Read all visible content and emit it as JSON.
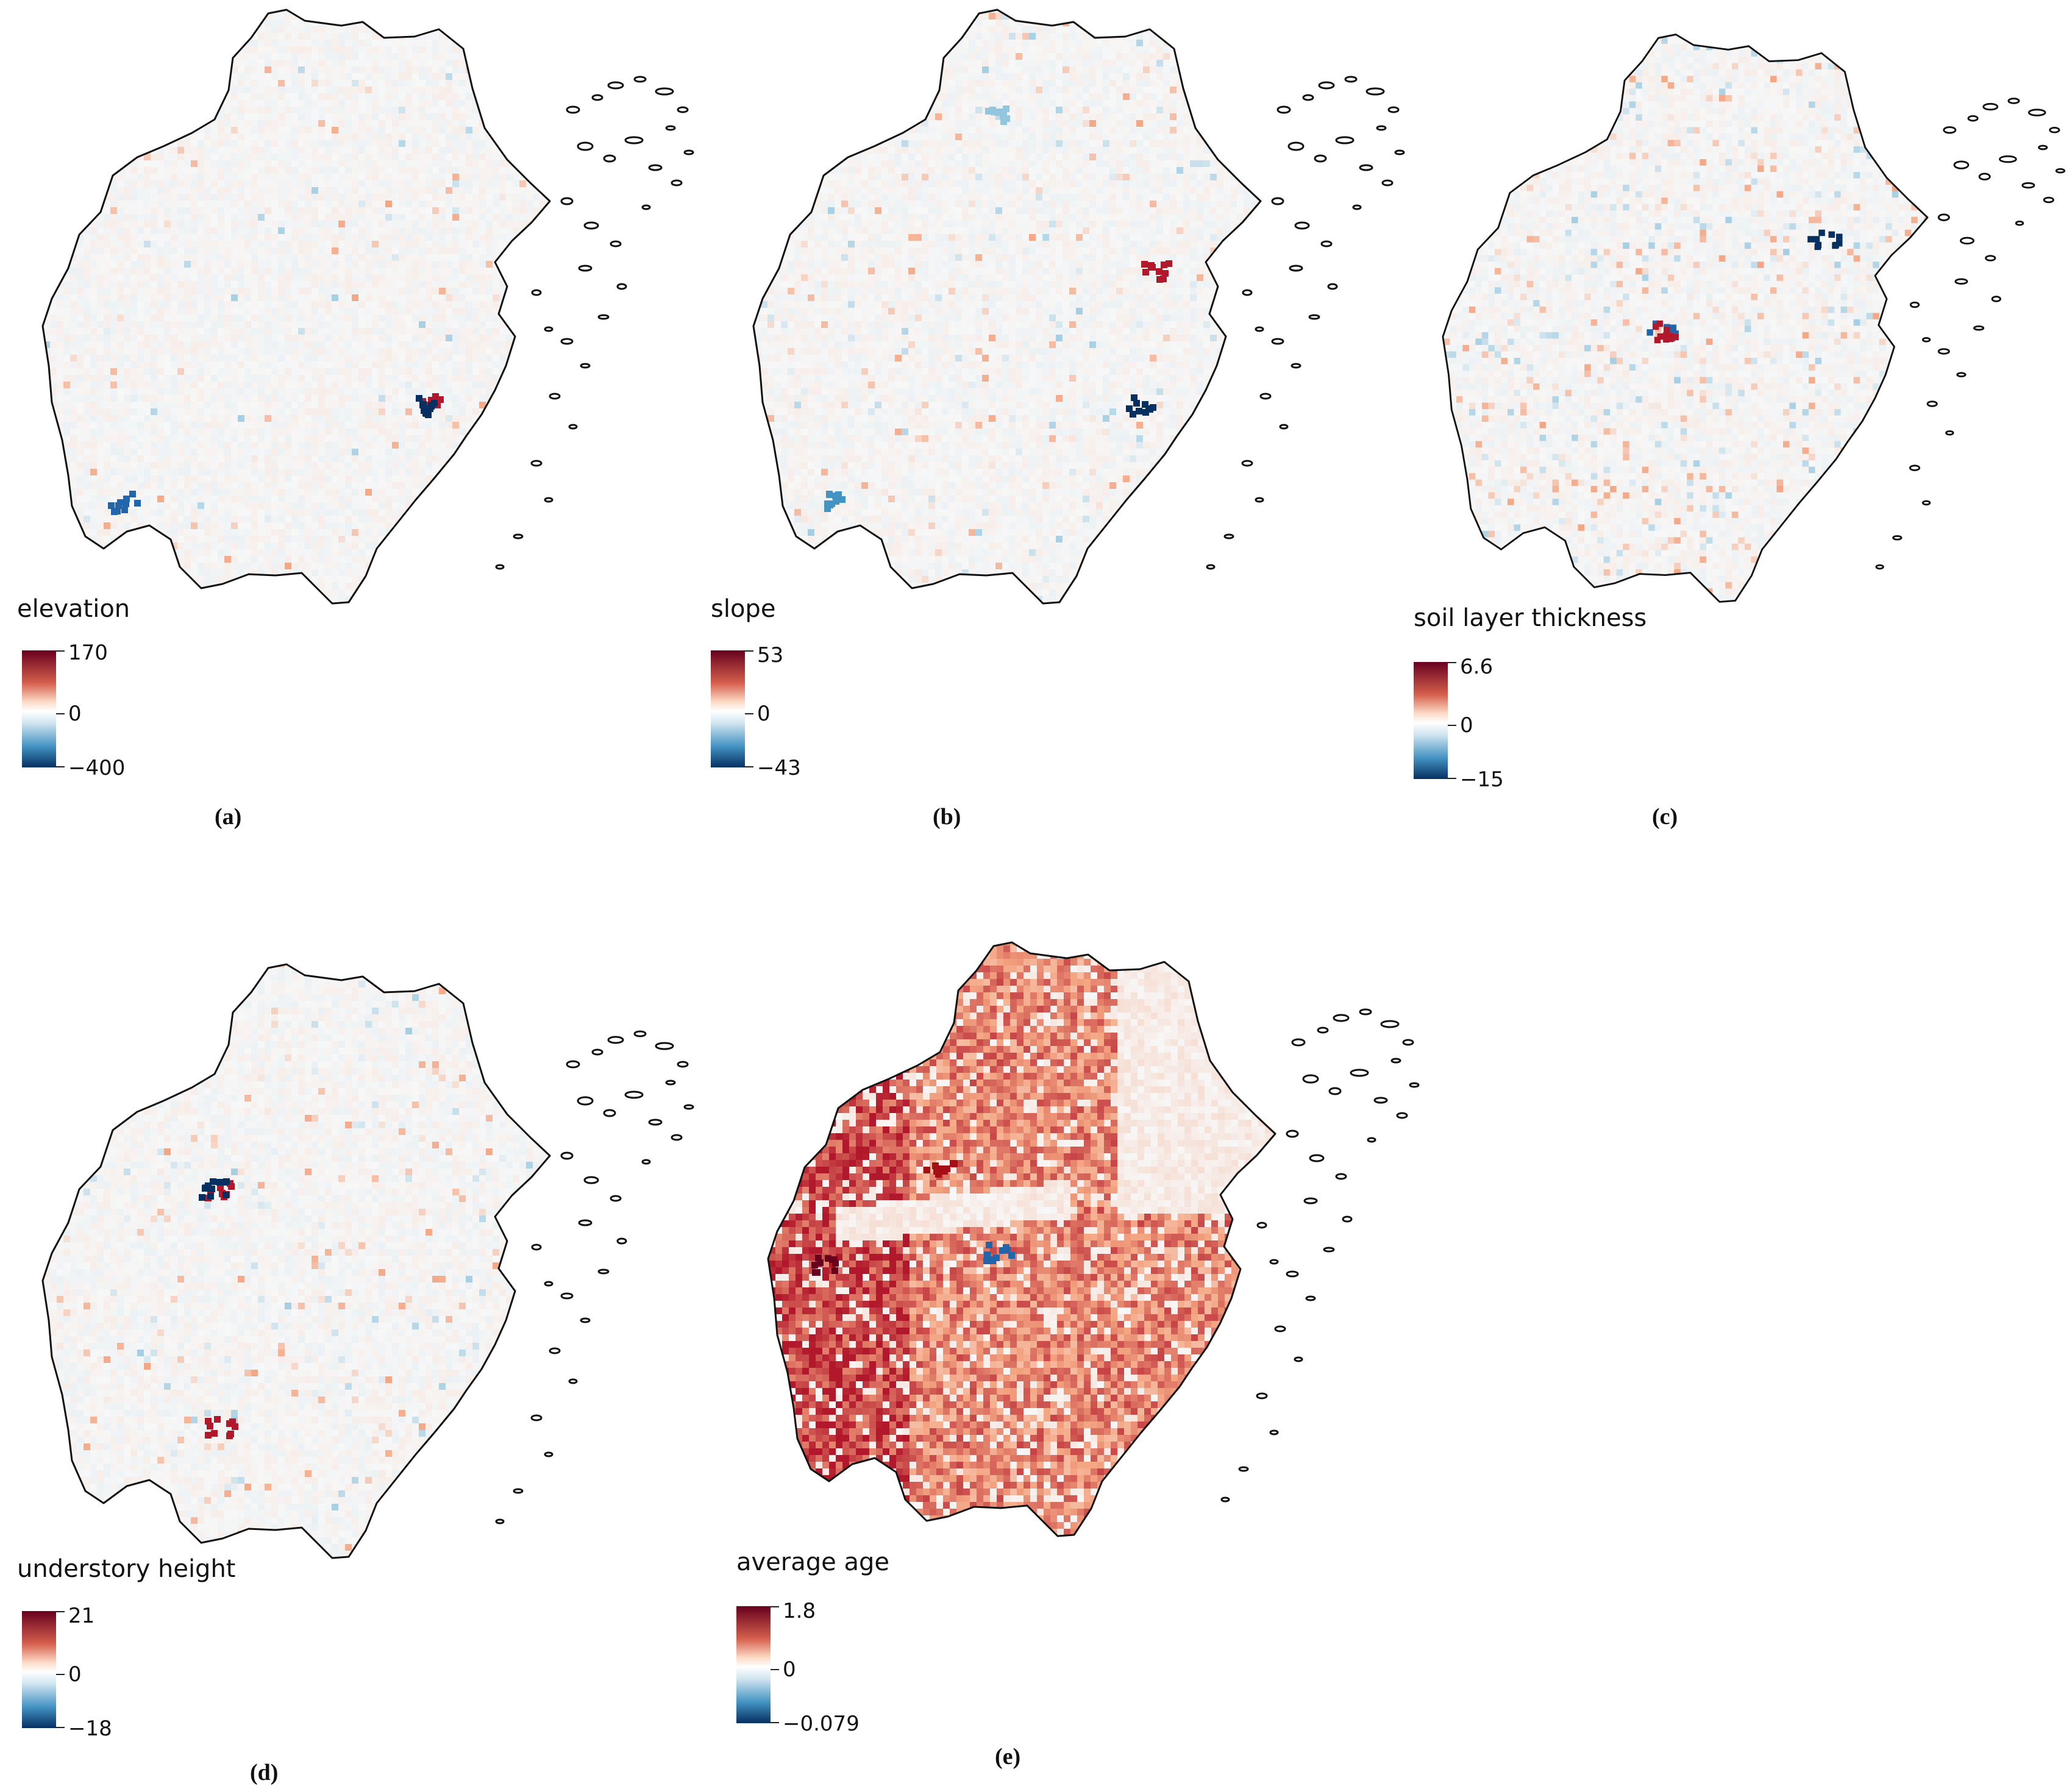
{
  "panels": [
    {
      "caption": "(a)",
      "variable": "elevation",
      "legend": {
        "max_label": "170",
        "mid_label": "0",
        "min_label": "−400"
      },
      "fill_level": 0.02,
      "hotspots": [
        {
          "position": "east-centre",
          "color": "#b2182b"
        },
        {
          "position": "east-centre",
          "color": "#053061"
        },
        {
          "position": "south-west",
          "color": "#2166ac"
        }
      ]
    },
    {
      "caption": "(b)",
      "variable": "slope",
      "legend": {
        "max_label": "53",
        "mid_label": "0",
        "min_label": "−43"
      },
      "fill_level": 0.05,
      "hotspots": [
        {
          "position": "east-centre",
          "color": "#053061"
        },
        {
          "position": "east-north",
          "color": "#b2182b"
        },
        {
          "position": "north",
          "color": "#92c5de"
        },
        {
          "position": "south-west",
          "color": "#4393c3"
        }
      ]
    },
    {
      "caption": "(c)",
      "variable": "soil layer thickness",
      "legend": {
        "max_label": "6.6",
        "mid_label": "0",
        "min_label": "−15"
      },
      "fill_level": 0.12,
      "hotspots": [
        {
          "position": "north-east",
          "color": "#053061"
        },
        {
          "position": "centre",
          "color": "#2166ac"
        },
        {
          "position": "centre",
          "color": "#b2182b"
        }
      ]
    },
    {
      "caption": "(d)",
      "variable": "understory height",
      "legend": {
        "max_label": "21",
        "mid_label": "0",
        "min_label": "−18"
      },
      "fill_level": 0.05,
      "hotspots": [
        {
          "position": "north-west",
          "color": "#b2182b"
        },
        {
          "position": "north-west",
          "color": "#053061"
        },
        {
          "position": "south-centre",
          "color": "#b2182b"
        }
      ]
    },
    {
      "caption": "(e)",
      "variable": "average age",
      "legend": {
        "max_label": "1.8",
        "mid_label": "0",
        "min_label": "−0.079"
      },
      "fill_level": 0.6,
      "hotspots": [
        {
          "position": "west",
          "color": "#67001f"
        },
        {
          "position": "north-west",
          "color": "#a50f15"
        },
        {
          "position": "centre",
          "color": "#2166ac"
        }
      ]
    }
  ],
  "colors": {
    "outline": "#111111",
    "positive": "#b2182b",
    "negative": "#2166ac",
    "neutral": "#f4f6f7"
  },
  "colormap": "RdBu_r (diverging, red = positive, blue = negative)"
}
